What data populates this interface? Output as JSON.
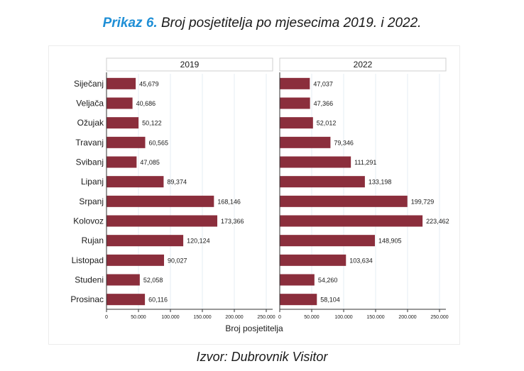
{
  "page": {
    "title_prefix": "Prikaz 6.",
    "title_text": "Broj posjetitelja po mjesecima 2019. i 2022.",
    "source": "Izvor: Dubrovnik Visitor"
  },
  "colors": {
    "bar": "#8b2e3c",
    "grid": "#e6edf3",
    "panel_header_border": "#cfcfcf",
    "title_accent": "#1f8fd6"
  },
  "chart_data": {
    "type": "bar",
    "orientation": "horizontal",
    "xlabel": "Broj posjetitelja",
    "ylabel": "",
    "xlim": [
      0,
      260000
    ],
    "xticks": [
      0,
      50000,
      100000,
      150000,
      200000,
      250000
    ],
    "xtick_labels": [
      "0",
      "50.000",
      "100.000",
      "150.000",
      "200.000",
      "250.000"
    ],
    "grid": true,
    "categories": [
      "Siječanj",
      "Veljača",
      "Ožujak",
      "Travanj",
      "Svibanj",
      "Lipanj",
      "Srpanj",
      "Kolovoz",
      "Rujan",
      "Listopad",
      "Studeni",
      "Prosinac"
    ],
    "panels": [
      {
        "name": "2019",
        "values": [
          45679,
          40686,
          50122,
          60565,
          47085,
          89374,
          168146,
          173366,
          120124,
          90027,
          52058,
          60116
        ],
        "value_labels": [
          "45,679",
          "40,686",
          "50,122",
          "60,565",
          "47,085",
          "89,374",
          "168,146",
          "173,366",
          "120,124",
          "90,027",
          "52,058",
          "60,116"
        ]
      },
      {
        "name": "2022",
        "values": [
          47037,
          47366,
          52012,
          79346,
          111291,
          133198,
          199729,
          223462,
          148905,
          103634,
          54260,
          58104
        ],
        "value_labels": [
          "47,037",
          "47,366",
          "52,012",
          "79,346",
          "111,291",
          "133,198",
          "199,729",
          "223,462",
          "148,905",
          "103,634",
          "54,260",
          "58,104"
        ]
      }
    ]
  }
}
